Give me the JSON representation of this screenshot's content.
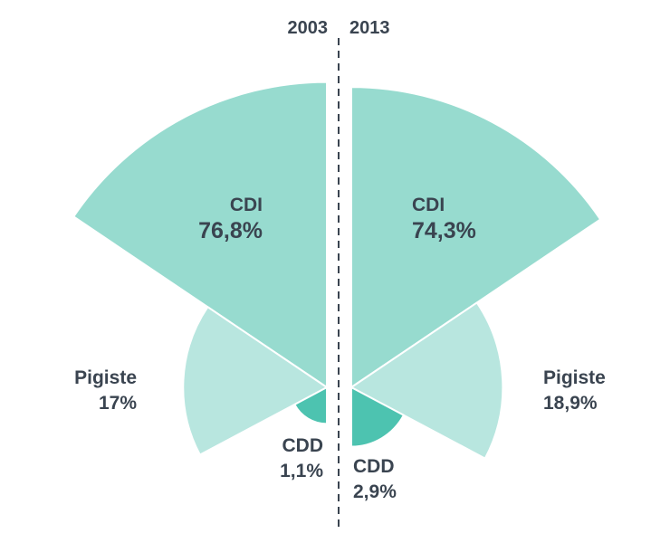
{
  "chart_data": {
    "type": "pie",
    "title": "",
    "layout": "half-rose mirrored",
    "years": [
      "2003",
      "2013"
    ],
    "colors": {
      "CDI": "#97dbcf",
      "Pigiste": "#b8e6df",
      "CDD": "#4dc3b0",
      "divider": "#3a4450"
    },
    "series": [
      {
        "name": "2003",
        "slices": [
          {
            "label": "CDI",
            "value": 76.8,
            "display": "76,8%"
          },
          {
            "label": "Pigiste",
            "value": 17,
            "display": "17%"
          },
          {
            "label": "CDD",
            "value": 1.1,
            "display": "1,1%"
          }
        ]
      },
      {
        "name": "2013",
        "slices": [
          {
            "label": "CDI",
            "value": 74.3,
            "display": "74,3%"
          },
          {
            "label": "Pigiste",
            "value": 18.9,
            "display": "18,9%"
          },
          {
            "label": "CDD",
            "value": 2.9,
            "display": "2,9%"
          }
        ]
      }
    ]
  }
}
